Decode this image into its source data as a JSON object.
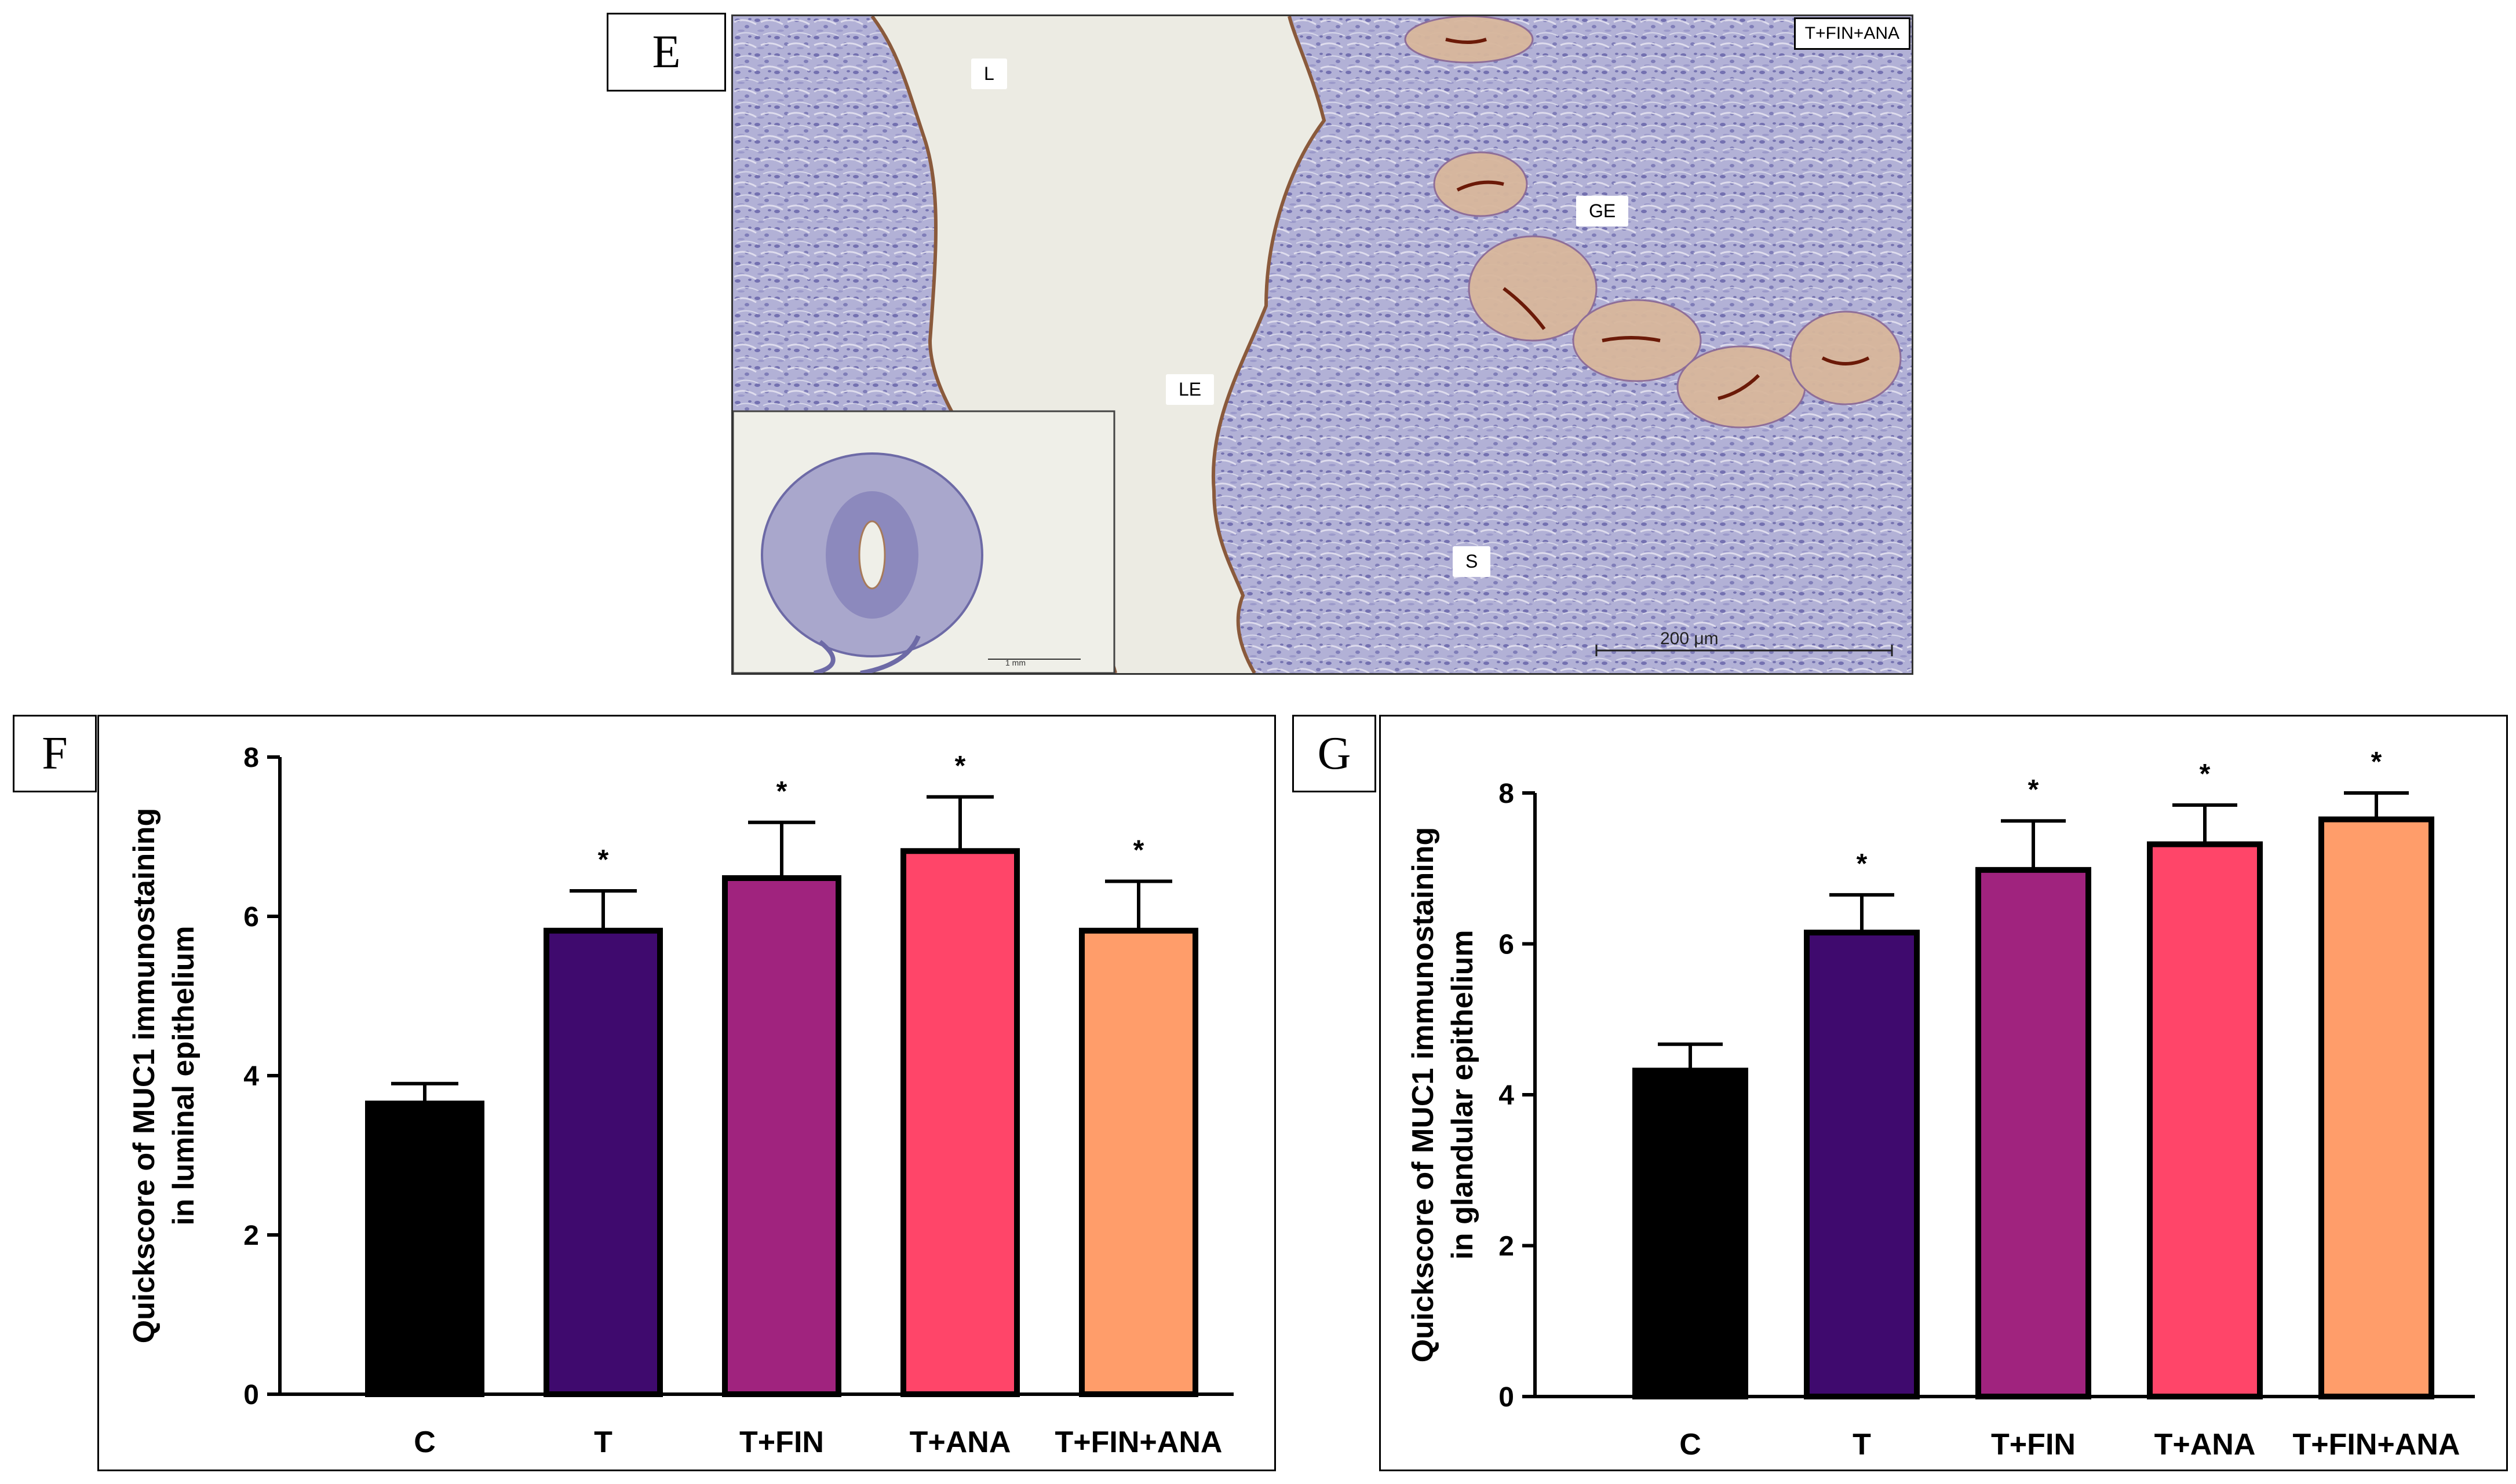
{
  "panels": {
    "e": {
      "letter": "E"
    },
    "f": {
      "letter": "F"
    },
    "g": {
      "letter": "G"
    }
  },
  "micrograph": {
    "labels": {
      "lumen": "L",
      "glandular_epithelium": "GE",
      "luminal_epithelium": "LE",
      "stroma": "S"
    },
    "group_label": "T+FIN+ANA",
    "scale_bar": "200 μm",
    "inset_scale_bar": "1 mm"
  },
  "chart_data": [
    {
      "type": "bar",
      "panel": "F",
      "title": "",
      "ylabel": "Quickscore of MUC1 immunostaining in luminal epithelium",
      "ylabel_lines": [
        "Quickscore of MUC1 immunostaining",
        "in luminal epithelium"
      ],
      "xlabel": "",
      "categories": [
        "C",
        "T",
        "T+FIN",
        "T+ANA",
        "T+FIN+ANA"
      ],
      "values": [
        3.65,
        5.82,
        6.48,
        6.82,
        5.82
      ],
      "errors": [
        0.25,
        0.5,
        0.7,
        0.68,
        0.62
      ],
      "significance": [
        "",
        "*",
        "*",
        "*",
        "*"
      ],
      "colors": [
        "#000000",
        "#3f0a6e",
        "#a0237e",
        "#ff4569",
        "#ff9d6a"
      ],
      "ylim": [
        0,
        8
      ],
      "yticks": [
        0,
        2,
        4,
        6,
        8
      ],
      "grid": false
    },
    {
      "type": "bar",
      "panel": "G",
      "title": "",
      "ylabel": "Quickscore of MUC1 immunostaining in glandular epithelium",
      "ylabel_lines": [
        "Quickscore of MUC1 immunostaining",
        "in glandular epithelium"
      ],
      "xlabel": "",
      "categories": [
        "C",
        "T",
        "T+FIN",
        "T+ANA",
        "T+FIN+ANA"
      ],
      "values": [
        4.32,
        6.15,
        6.98,
        7.32,
        7.65
      ],
      "errors": [
        0.35,
        0.5,
        0.65,
        0.52,
        0.35
      ],
      "significance": [
        "",
        "*",
        "*",
        "*",
        "*"
      ],
      "colors": [
        "#000000",
        "#3f0a6e",
        "#a0237e",
        "#ff4569",
        "#ff9d6a"
      ],
      "ylim": [
        0,
        8
      ],
      "yticks": [
        0,
        2,
        4,
        6,
        8
      ],
      "grid": false
    }
  ]
}
